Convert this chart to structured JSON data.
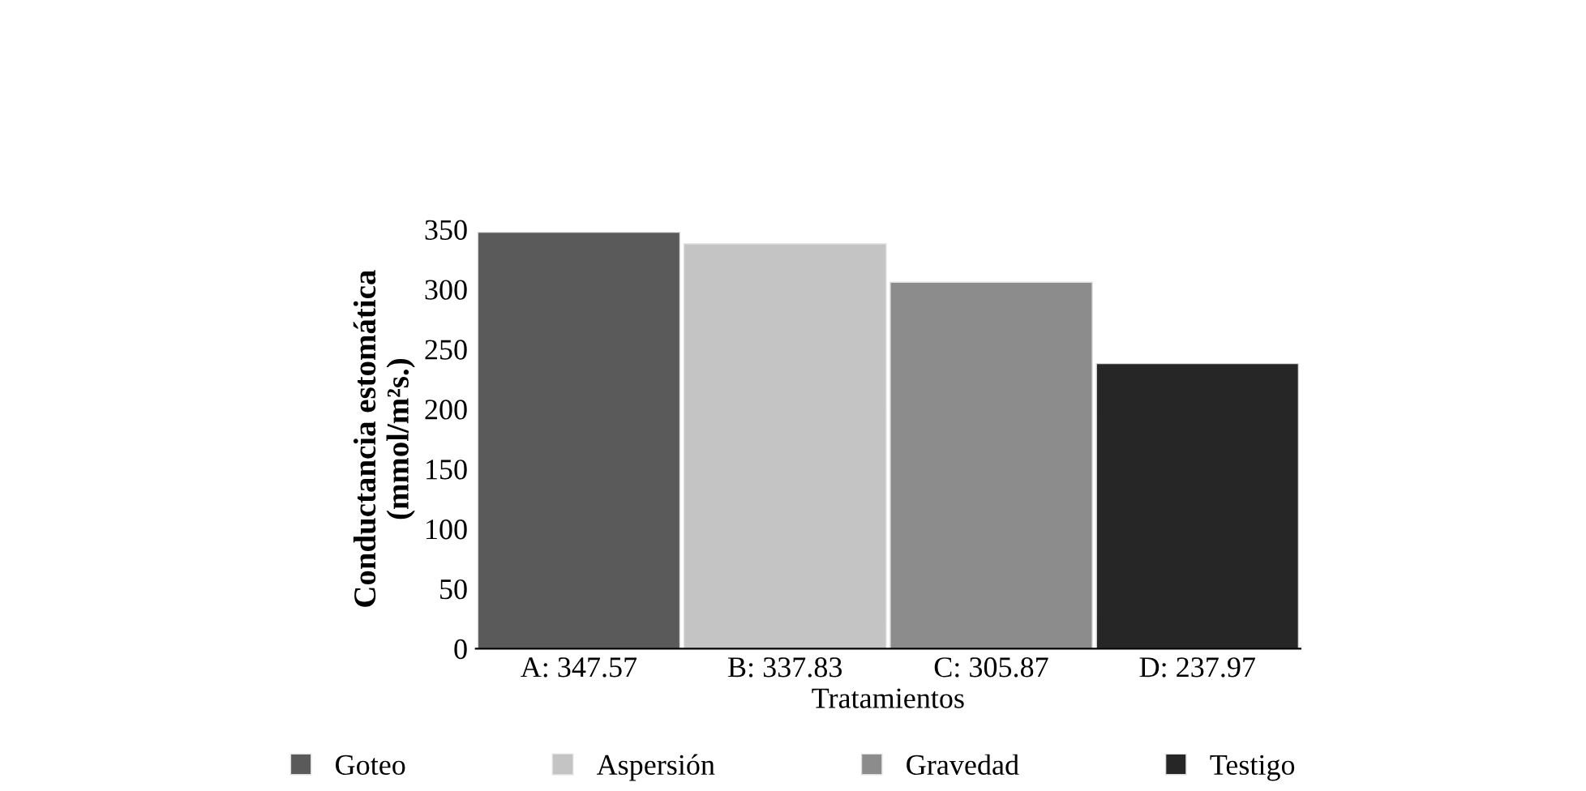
{
  "chart_data": {
    "type": "bar",
    "xlabel": "Tratamientos",
    "ylabel": "Conductancia estomática\n(mmol/m²s.)",
    "categories": [
      "A: 347.57",
      "B: 337.83",
      "C: 305.87",
      "D: 237.97"
    ],
    "series": [
      {
        "name": "Goteo",
        "color": "#5a5a5a",
        "values": [
          347.57,
          null,
          null,
          null
        ]
      },
      {
        "name": "Aspersión",
        "color": "#c4c4c4",
        "values": [
          null,
          337.83,
          null,
          null
        ]
      },
      {
        "name": "Gravedad",
        "color": "#8c8c8c",
        "values": [
          null,
          null,
          305.87,
          null
        ]
      },
      {
        "name": "Testigo",
        "color": "#262626",
        "values": [
          null,
          null,
          null,
          237.97
        ]
      }
    ],
    "ylim": [
      0,
      350
    ],
    "yticks": [
      0,
      50,
      100,
      150,
      200,
      250,
      300,
      350
    ],
    "grid": false,
    "legend": "bottom"
  }
}
